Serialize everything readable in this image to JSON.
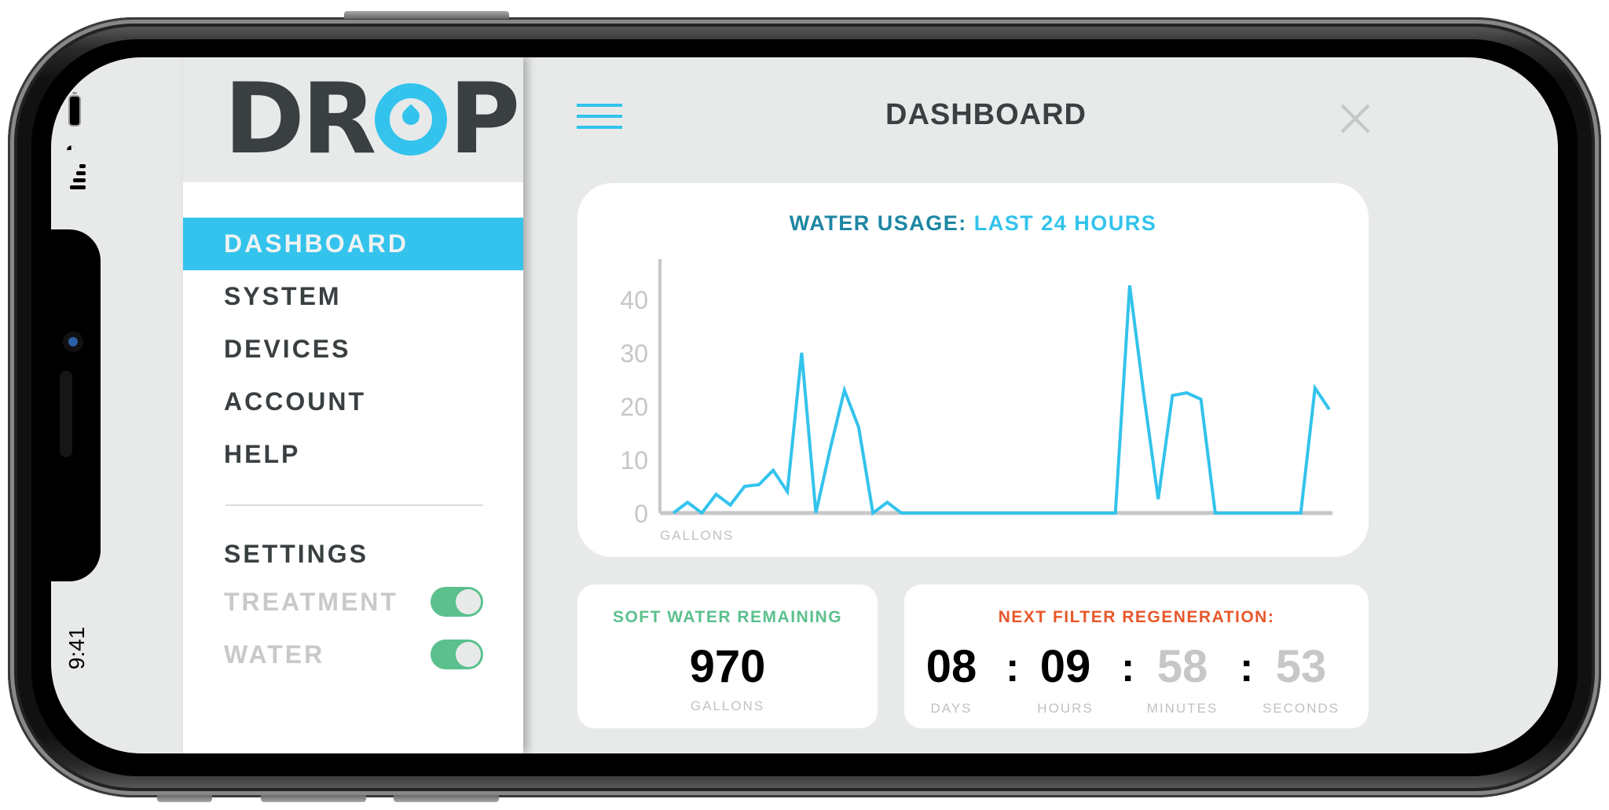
{
  "status_bar": {
    "time": "9:41",
    "battery_icon": "battery-icon",
    "wifi_icon": "wifi-icon",
    "signal_icon": "cellular-signal-icon"
  },
  "sidebar": {
    "logo_text_left": "DR",
    "logo_text_right": "P",
    "logo_icon": "water-drop-icon",
    "nav_items": [
      {
        "label": "DASHBOARD",
        "active": true
      },
      {
        "label": "SYSTEM",
        "active": false
      },
      {
        "label": "DEVICES",
        "active": false
      },
      {
        "label": "ACCOUNT",
        "active": false
      },
      {
        "label": "HELP",
        "active": false
      }
    ],
    "settings": {
      "title": "SETTINGS",
      "toggles": [
        {
          "label": "TREATMENT",
          "on": true
        },
        {
          "label": "WATER",
          "on": true
        }
      ]
    }
  },
  "header": {
    "title": "DASHBOARD",
    "menu_icon": "hamburger-menu-icon",
    "close_icon": "close-icon"
  },
  "usage_card": {
    "title_part1": "WATER USAGE:",
    "title_part2": "LAST 24 HOURS",
    "y_unit": "GALLONS"
  },
  "soft_water": {
    "title": "SOFT WATER REMAINING",
    "value": "970",
    "unit": "GALLONS"
  },
  "regeneration": {
    "title": "NEXT FILTER REGENERATION:",
    "units": [
      {
        "value": "08",
        "label": "DAYS"
      },
      {
        "value": "09",
        "label": "HOURS"
      },
      {
        "value": "58",
        "label": "MINUTES"
      },
      {
        "value": "53",
        "label": "SECONDS"
      }
    ],
    "separator": ":"
  },
  "colors": {
    "accent_blue": "#33c3ec",
    "dark_blue": "#1d86a3",
    "green": "#5bc08d",
    "orange": "#e8572a",
    "text_dark": "#3a3f42",
    "muted": "#c5c7c8"
  },
  "chart_data": {
    "type": "line",
    "title": "WATER USAGE: LAST 24 HOURS",
    "xlabel": "",
    "ylabel": "GALLONS",
    "ylim": [
      0,
      45
    ],
    "yticks": [
      0,
      10,
      20,
      30,
      40
    ],
    "grid": false,
    "legend": null,
    "x": [
      0,
      1,
      2,
      3,
      4,
      5,
      6,
      7,
      8,
      9,
      10,
      11,
      12,
      13,
      14,
      15,
      16,
      17,
      18,
      19,
      20,
      21,
      22,
      23,
      24,
      25,
      26,
      27,
      28,
      29,
      30,
      31,
      32,
      33,
      34,
      35,
      36,
      37,
      38,
      39,
      40,
      41,
      42,
      43,
      44,
      45,
      46,
      47
    ],
    "series": [
      {
        "name": "Water usage (gallons)",
        "color": "#33c3ec",
        "values": [
          0,
          2,
          0,
          3.5,
          1.5,
          5,
          5.3,
          8,
          4,
          30,
          0,
          12,
          23,
          16,
          0,
          2,
          0,
          0,
          0,
          0,
          0,
          0,
          0,
          0,
          0,
          0,
          0,
          0,
          0,
          0,
          0,
          0,
          42.6,
          22,
          2.6,
          22,
          22.5,
          21.3,
          0,
          0,
          0,
          0,
          0,
          0,
          0,
          23.4,
          19.4,
          null
        ]
      }
    ]
  }
}
